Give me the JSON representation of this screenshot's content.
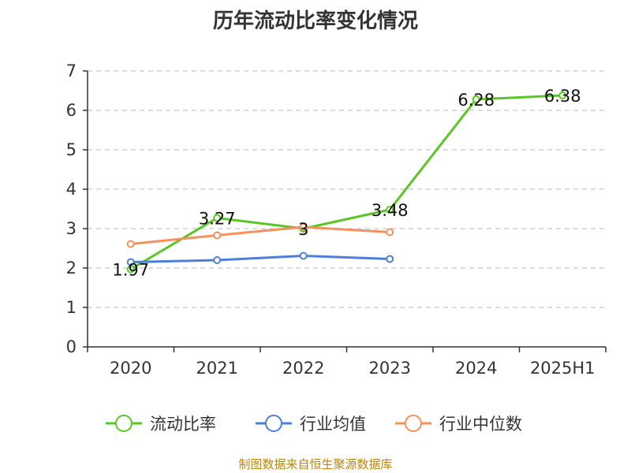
{
  "chart_data": {
    "type": "line",
    "title": "历年流动比率变化情况",
    "categories": [
      "2020",
      "2021",
      "2022",
      "2023",
      "2024",
      "2025H1"
    ],
    "ylim": [
      0,
      7
    ],
    "yticks": [
      "0",
      "1",
      "2",
      "3",
      "4",
      "5",
      "6",
      "7"
    ],
    "grid": true,
    "legend_position": "bottom",
    "series": [
      {
        "name": "流动比率",
        "color": "#5bc726",
        "values": [
          1.97,
          3.27,
          3,
          3.48,
          6.28,
          6.38
        ],
        "labels": [
          "1.97",
          "3.27",
          "3",
          "3.48",
          "6.28",
          "6.38"
        ]
      },
      {
        "name": "行业均值",
        "color": "#4e7fdc",
        "values": [
          2.15,
          2.2,
          2.31,
          2.23,
          null,
          null
        ]
      },
      {
        "name": "行业中位数",
        "color": "#f4915e",
        "values": [
          2.61,
          2.83,
          3.04,
          2.91,
          null,
          null
        ]
      }
    ]
  },
  "source": "制图数据来自恒生聚源数据库"
}
